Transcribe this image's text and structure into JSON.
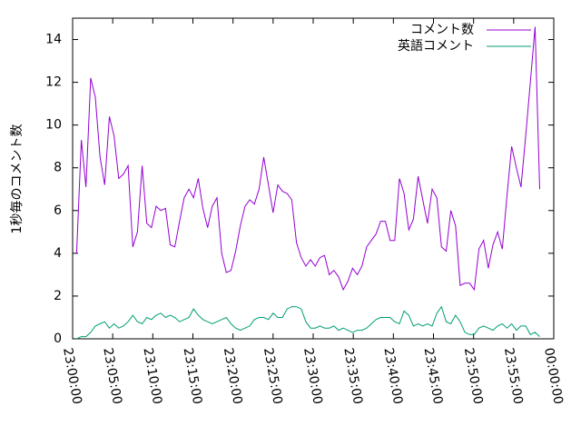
{
  "chart_data": {
    "type": "line",
    "y_label": "1秒毎のコメント数",
    "x": [
      "23:00:30",
      "23:01:05",
      "23:01:40",
      "23:02:15",
      "23:02:50",
      "23:03:25",
      "23:04:00",
      "23:04:35",
      "23:05:10",
      "23:05:45",
      "23:06:20",
      "23:06:55",
      "23:07:30",
      "23:08:05",
      "23:08:40",
      "23:09:15",
      "23:09:50",
      "23:10:25",
      "23:11:00",
      "23:11:35",
      "23:12:10",
      "23:12:45",
      "23:13:20",
      "23:13:55",
      "23:14:30",
      "23:15:05",
      "23:15:40",
      "23:16:15",
      "23:16:50",
      "23:17:25",
      "23:18:00",
      "23:18:35",
      "23:19:10",
      "23:19:45",
      "23:20:20",
      "23:20:55",
      "23:21:30",
      "23:22:05",
      "23:22:40",
      "23:23:15",
      "23:23:50",
      "23:24:25",
      "23:25:00",
      "23:25:35",
      "23:26:10",
      "23:26:45",
      "23:27:20",
      "23:27:55",
      "23:28:30",
      "23:29:05",
      "23:29:40",
      "23:30:15",
      "23:30:50",
      "23:31:25",
      "23:32:00",
      "23:32:35",
      "23:33:10",
      "23:33:45",
      "23:34:20",
      "23:34:55",
      "23:35:30",
      "23:36:05",
      "23:36:40",
      "23:37:15",
      "23:37:50",
      "23:38:25",
      "23:39:00",
      "23:39:35",
      "23:40:10",
      "23:40:45",
      "23:41:20",
      "23:41:55",
      "23:42:30",
      "23:43:05",
      "23:43:40",
      "23:44:15",
      "23:44:50",
      "23:45:25",
      "23:46:00",
      "23:46:35",
      "23:47:10",
      "23:47:45",
      "23:48:20",
      "23:48:55",
      "23:49:30",
      "23:50:05",
      "23:50:40",
      "23:51:15",
      "23:51:50",
      "23:52:25",
      "23:53:00",
      "23:53:35",
      "23:54:10",
      "23:54:45",
      "23:55:20",
      "23:55:55",
      "23:56:30",
      "23:57:05",
      "23:57:40",
      "23:58:15"
    ],
    "series": [
      {
        "name": "コメント数",
        "color": "#9400d3",
        "values": [
          4.0,
          9.3,
          7.1,
          12.2,
          11.3,
          8.5,
          7.2,
          10.4,
          9.5,
          7.5,
          7.7,
          8.1,
          4.3,
          5.0,
          8.1,
          5.4,
          5.2,
          6.2,
          6.0,
          6.1,
          4.4,
          4.3,
          5.5,
          6.6,
          7.0,
          6.6,
          7.5,
          6.1,
          5.2,
          6.2,
          6.6,
          4.0,
          3.1,
          3.2,
          4.1,
          5.3,
          6.2,
          6.5,
          6.3,
          7.0,
          8.5,
          7.2,
          5.9,
          7.2,
          6.9,
          6.8,
          6.5,
          4.5,
          3.8,
          3.4,
          3.7,
          3.4,
          3.8,
          3.9,
          3.0,
          3.2,
          2.9,
          2.3,
          2.7,
          3.3,
          3.0,
          3.4,
          4.3,
          4.6,
          4.9,
          5.5,
          5.5,
          4.6,
          4.6,
          7.5,
          6.8,
          5.1,
          5.6,
          7.6,
          6.5,
          5.4,
          7.0,
          6.6,
          4.3,
          4.1,
          6.0,
          5.3,
          2.5,
          2.6,
          2.6,
          2.3,
          4.2,
          4.6,
          3.3,
          4.4,
          5.0,
          4.2,
          6.7,
          9.0,
          8.0,
          7.1,
          9.5,
          12.0,
          14.6,
          7.0
        ]
      },
      {
        "name": "英語コメント",
        "color": "#009e73",
        "values": [
          0,
          0.1,
          0.1,
          0.3,
          0.6,
          0.7,
          0.8,
          0.5,
          0.7,
          0.5,
          0.6,
          0.8,
          1.1,
          0.8,
          0.7,
          1.0,
          0.9,
          1.1,
          1.2,
          1.0,
          1.1,
          1.0,
          0.8,
          0.9,
          1.0,
          1.4,
          1.1,
          0.9,
          0.8,
          0.7,
          0.8,
          0.9,
          1.0,
          0.7,
          0.5,
          0.4,
          0.5,
          0.6,
          0.9,
          1.0,
          1.0,
          0.9,
          1.2,
          1.0,
          1.0,
          1.4,
          1.5,
          1.5,
          1.4,
          0.8,
          0.5,
          0.5,
          0.6,
          0.5,
          0.5,
          0.6,
          0.4,
          0.5,
          0.4,
          0.3,
          0.4,
          0.4,
          0.5,
          0.7,
          0.9,
          1.0,
          1.0,
          1.0,
          0.8,
          0.7,
          1.3,
          1.1,
          0.6,
          0.7,
          0.6,
          0.7,
          0.6,
          1.2,
          1.5,
          0.8,
          0.7,
          1.1,
          0.8,
          0.3,
          0.2,
          0.2,
          0.5,
          0.6,
          0.5,
          0.4,
          0.6,
          0.7,
          0.5,
          0.7,
          0.4,
          0.6,
          0.6,
          0.2,
          0.3,
          0.1
        ]
      }
    ],
    "xlim": [
      "23:00:00",
      "00:00:00"
    ],
    "xticks": [
      "23:00:00",
      "23:05:00",
      "23:10:00",
      "23:15:00",
      "23:20:00",
      "23:25:00",
      "23:30:00",
      "23:35:00",
      "23:40:00",
      "23:45:00",
      "23:50:00",
      "23:55:00",
      "00:00:00"
    ],
    "ylim": [
      0,
      15
    ],
    "yticks": [
      0,
      2,
      4,
      6,
      8,
      10,
      12,
      14
    ],
    "legend": "top-right"
  }
}
